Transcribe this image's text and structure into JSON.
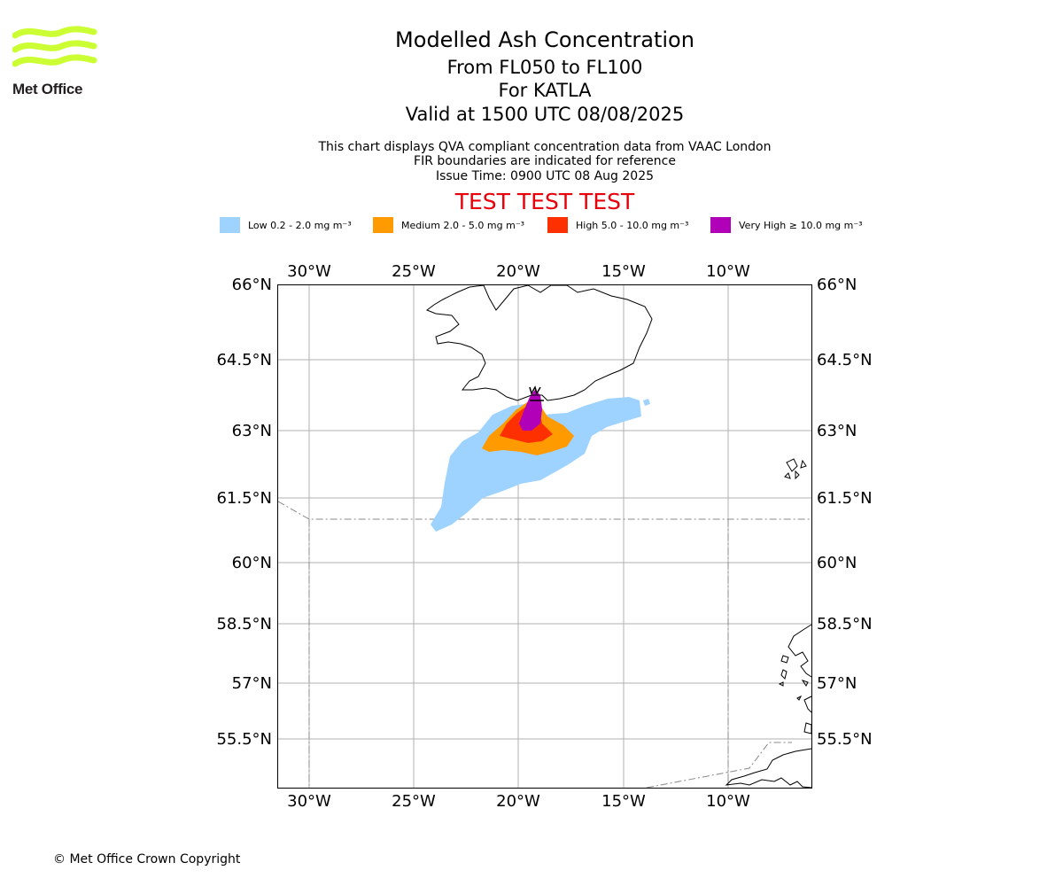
{
  "header": {
    "logo_text": "Met Office",
    "title": "Modelled Ash Concentration",
    "levels": "From FL050 to FL100",
    "volcano": "For KATLA",
    "valid": "Valid at 1500 UTC 08/08/2025",
    "desc1": "This chart displays QVA compliant concentration data from VAAC London",
    "desc2": "FIR boundaries are indicated for reference",
    "issue": "Issue Time: 0900 UTC 08 Aug 2025",
    "test_banner": "TEST TEST TEST"
  },
  "legend": [
    {
      "label": "Low 0.2 - 2.0 mg m⁻³",
      "color": "#9fd3ff"
    },
    {
      "label": "Medium 2.0 - 5.0 mg m⁻³",
      "color": "#ff9a00"
    },
    {
      "label": "High 5.0 - 10.0 mg m⁻³",
      "color": "#ff3000"
    },
    {
      "label": "Very High ≥ 10.0 mg m⁻³",
      "color": "#b000b8"
    }
  ],
  "map": {
    "lon_labels": [
      "30°W",
      "25°W",
      "20°W",
      "15°W",
      "10°W"
    ],
    "lat_labels": [
      "66°N",
      "64.5°N",
      "63°N",
      "61.5°N",
      "60°N",
      "58.5°N",
      "57°N",
      "55.5°N"
    ]
  },
  "footer": {
    "copyright": "© Met Office Crown Copyright"
  }
}
